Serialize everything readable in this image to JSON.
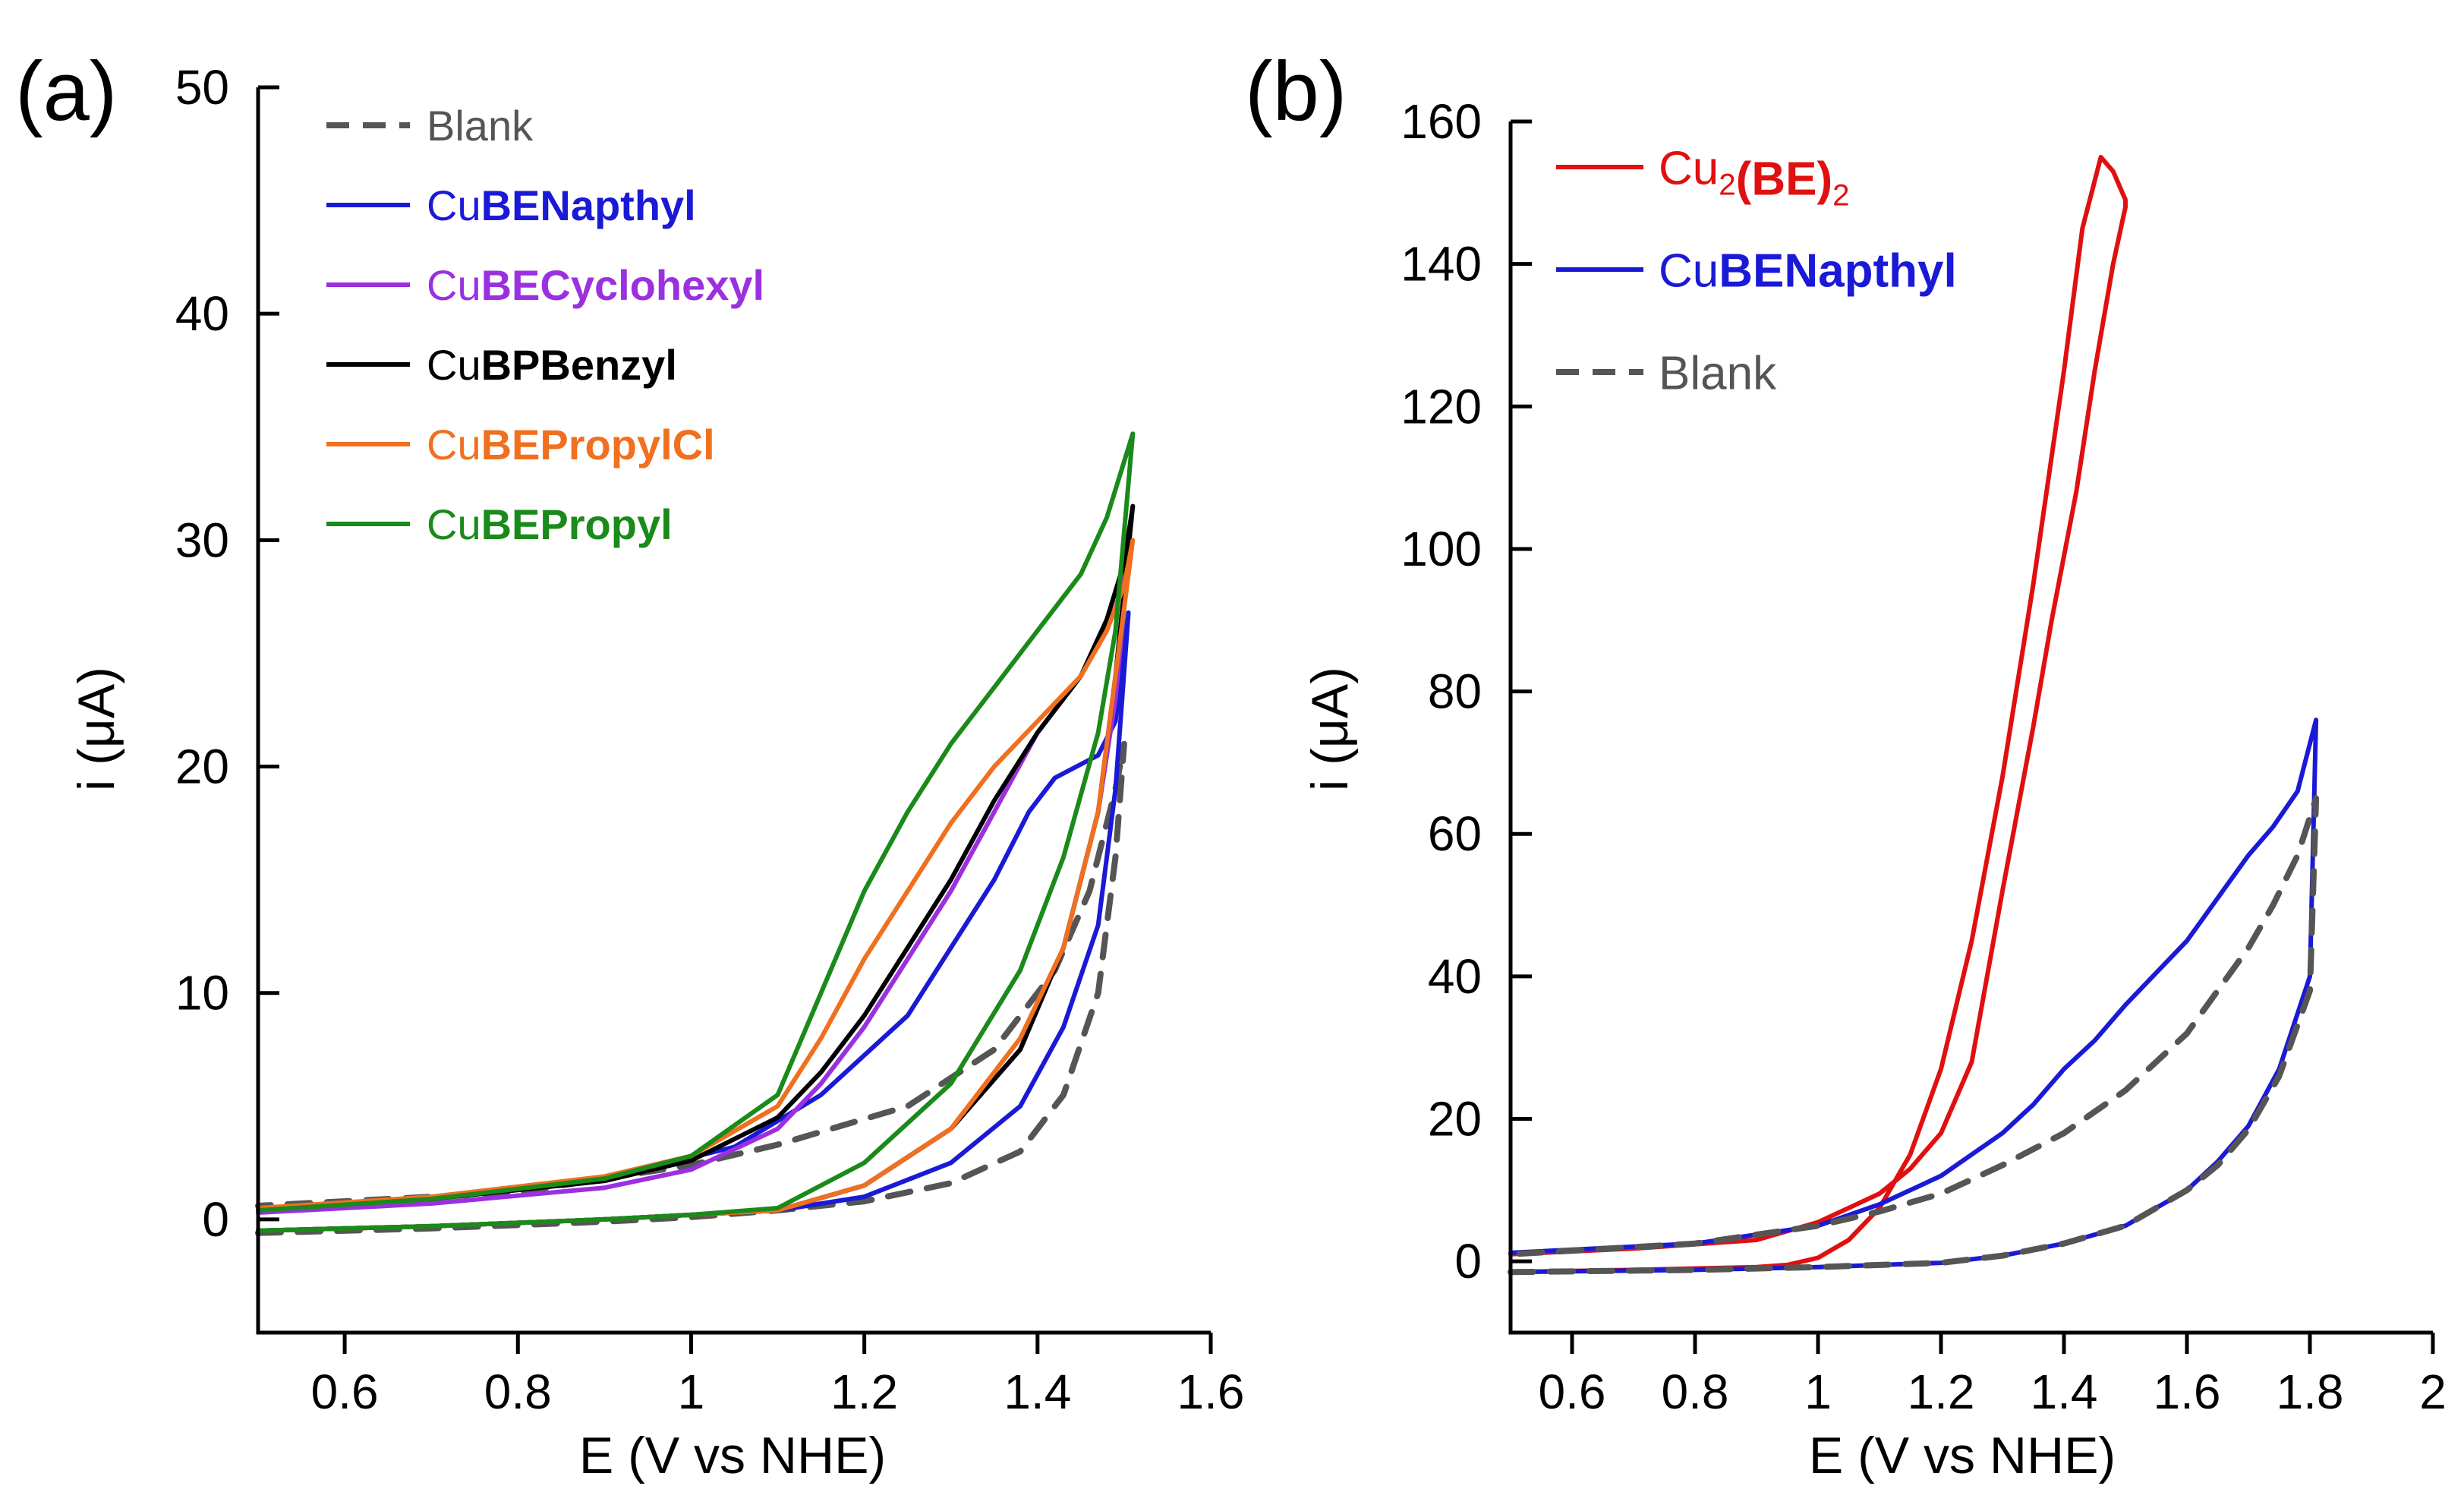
{
  "figure": {
    "panels": [
      {
        "label": "(a)",
        "xlabel": "E (V vs NHE)",
        "ylabel": "i (μA)",
        "xlim": [
          0.5,
          1.6
        ],
        "ylim": [
          -5,
          50
        ],
        "xticks": [
          0.6,
          0.8,
          1,
          1.2,
          1.4,
          1.6
        ],
        "xtick_labels": [
          "0.6",
          "0.8",
          "1",
          "1.2",
          "1.4",
          "1.6"
        ],
        "yticks": [
          0,
          10,
          20,
          30,
          40,
          50
        ],
        "ytick_labels": [
          "0",
          "10",
          "20",
          "30",
          "40",
          "50"
        ],
        "legend": [
          {
            "prefix": "",
            "bold": "",
            "plain": "Blank",
            "color": "#555555",
            "dashed": true
          },
          {
            "prefix": "Cu",
            "bold": "BENapthyl",
            "plain": "",
            "color": "#1a1ad6",
            "dashed": false
          },
          {
            "prefix": "Cu",
            "bold": "BECyclohexyl",
            "plain": "",
            "color": "#9b30e0",
            "dashed": false
          },
          {
            "prefix": "Cu",
            "bold": "BPBenzyl",
            "plain": "",
            "color": "#000000",
            "dashed": false
          },
          {
            "prefix": "Cu",
            "bold": "BEPropylCl",
            "plain": "",
            "color": "#f07020",
            "dashed": false
          },
          {
            "prefix": "Cu",
            "bold": "BEPropyl",
            "plain": "",
            "color": "#1a8a1a",
            "dashed": false
          }
        ]
      },
      {
        "label": "(b)",
        "xlabel": "E (V vs NHE)",
        "ylabel": "i (μA)",
        "xlim": [
          0.5,
          2.0
        ],
        "ylim": [
          -10,
          160
        ],
        "xticks": [
          0.6,
          0.8,
          1,
          1.2,
          1.4,
          1.6,
          1.8,
          2
        ],
        "xtick_labels": [
          "0.6",
          "0.8",
          "1",
          "1.2",
          "1.4",
          "1.6",
          "1.8",
          "2"
        ],
        "yticks": [
          0,
          20,
          40,
          60,
          80,
          100,
          120,
          140,
          160
        ],
        "ytick_labels": [
          "0",
          "20",
          "40",
          "60",
          "80",
          "100",
          "120",
          "140",
          "160"
        ],
        "legend": [
          {
            "prefix": "Cu",
            "sub1": "2",
            "bold": "(BE)",
            "sub2": "2",
            "color": "#e01010",
            "dashed": false
          },
          {
            "prefix": "Cu",
            "bold": "BENapthyl",
            "plain": "",
            "color": "#1a1ad6",
            "dashed": false
          },
          {
            "prefix": "",
            "bold": "",
            "plain": "Blank",
            "color": "#555555",
            "dashed": true
          }
        ]
      }
    ]
  },
  "chart_data": [
    {
      "type": "line",
      "title": "(a)",
      "xlabel": "E (V vs NHE)",
      "ylabel": "i (μA)",
      "xlim": [
        0.5,
        1.6
      ],
      "ylim": [
        -5,
        50
      ],
      "grid": false,
      "legend": "top-left",
      "series": [
        {
          "name": "Blank",
          "color": "#555555",
          "dashed": true,
          "x": [
            0.5,
            0.7,
            0.9,
            1.0,
            1.1,
            1.2,
            1.3,
            1.38,
            1.43,
            1.47,
            1.49,
            1.5,
            1.49,
            1.46,
            1.42,
            1.35,
            1.25,
            1.1,
            1.0,
            0.8,
            0.5
          ],
          "y": [
            -0.6,
            -0.4,
            -0.1,
            0.1,
            0.4,
            0.8,
            1.6,
            3.0,
            5.5,
            10.0,
            16.0,
            21.0,
            19.0,
            14.5,
            11.0,
            7.5,
            5.0,
            3.3,
            2.4,
            1.2,
            0.6
          ]
        },
        {
          "name": "CuBENapthyl",
          "color": "#1a1ad6",
          "dashed": false,
          "x": [
            0.5,
            0.7,
            0.9,
            1.0,
            1.1,
            1.2,
            1.3,
            1.38,
            1.43,
            1.47,
            1.49,
            1.505,
            1.49,
            1.47,
            1.42,
            1.39,
            1.35,
            1.25,
            1.15,
            1.05,
            0.9,
            0.7,
            0.5
          ],
          "y": [
            -0.5,
            -0.3,
            0.0,
            0.2,
            0.4,
            1.0,
            2.5,
            5.0,
            8.5,
            13.0,
            19.0,
            26.8,
            22.0,
            20.5,
            19.5,
            18.0,
            15.0,
            9.0,
            5.5,
            3.2,
            1.8,
            0.9,
            0.4
          ]
        },
        {
          "name": "CuBECyclohexyl",
          "color": "#9b30e0",
          "dashed": false,
          "x": [
            0.5,
            0.7,
            0.9,
            1.0,
            1.1,
            1.2,
            1.3,
            1.38,
            1.43,
            1.47,
            1.49,
            1.505,
            1.49,
            1.45,
            1.4,
            1.35,
            1.3,
            1.25,
            1.2,
            1.15,
            1.1,
            1.0,
            0.9,
            0.7,
            0.5
          ],
          "y": [
            -0.5,
            -0.3,
            0.0,
            0.2,
            0.4,
            1.5,
            4.0,
            7.5,
            12.0,
            18.0,
            23.0,
            29.0,
            27.0,
            24.0,
            21.5,
            18.0,
            14.5,
            11.5,
            8.5,
            6.0,
            4.0,
            2.2,
            1.4,
            0.7,
            0.3
          ]
        },
        {
          "name": "CuBPBenzyl",
          "color": "#000000",
          "dashed": false,
          "x": [
            0.5,
            0.7,
            0.9,
            1.0,
            1.1,
            1.2,
            1.3,
            1.38,
            1.43,
            1.47,
            1.49,
            1.51,
            1.5,
            1.48,
            1.45,
            1.4,
            1.35,
            1.3,
            1.25,
            1.2,
            1.15,
            1.1,
            1.0,
            0.9,
            0.7,
            0.5
          ],
          "y": [
            -0.5,
            -0.3,
            0.0,
            0.2,
            0.4,
            1.5,
            4.0,
            7.5,
            12.0,
            18.0,
            24.0,
            31.5,
            29.0,
            26.5,
            24.0,
            21.5,
            18.5,
            15.0,
            12.0,
            9.0,
            6.5,
            4.5,
            2.6,
            1.7,
            0.9,
            0.5
          ]
        },
        {
          "name": "CuBEPropylCl",
          "color": "#f07020",
          "dashed": false,
          "x": [
            0.5,
            0.7,
            0.9,
            1.0,
            1.1,
            1.2,
            1.3,
            1.38,
            1.43,
            1.47,
            1.49,
            1.51,
            1.5,
            1.48,
            1.45,
            1.4,
            1.35,
            1.3,
            1.25,
            1.2,
            1.15,
            1.1,
            1.0,
            0.9,
            0.7,
            0.5
          ],
          "y": [
            -0.5,
            -0.3,
            0.0,
            0.2,
            0.4,
            1.5,
            4.0,
            8.0,
            12.0,
            18.0,
            24.0,
            30.0,
            28.0,
            26.0,
            24.0,
            22.0,
            20.0,
            17.5,
            14.5,
            11.5,
            8.0,
            5.0,
            2.8,
            1.9,
            1.0,
            0.5
          ]
        },
        {
          "name": "CuBEPropyl",
          "color": "#1a8a1a",
          "dashed": false,
          "x": [
            0.5,
            0.7,
            0.9,
            1.0,
            1.1,
            1.2,
            1.3,
            1.38,
            1.43,
            1.47,
            1.49,
            1.51,
            1.48,
            1.45,
            1.4,
            1.35,
            1.3,
            1.25,
            1.2,
            1.15,
            1.1,
            1.0,
            0.9,
            0.7,
            0.5
          ],
          "y": [
            -0.5,
            -0.3,
            0.0,
            0.2,
            0.5,
            2.5,
            6.0,
            11.0,
            16.0,
            21.5,
            26.0,
            34.7,
            31.0,
            28.5,
            26.0,
            23.5,
            21.0,
            18.0,
            14.5,
            10.0,
            5.5,
            2.8,
            1.8,
            0.9,
            0.4
          ]
        }
      ]
    },
    {
      "type": "line",
      "title": "(b)",
      "xlabel": "E (V vs NHE)",
      "ylabel": "i (μA)",
      "xlim": [
        0.5,
        2.0
      ],
      "ylim": [
        -10,
        160
      ],
      "grid": false,
      "legend": "top-left",
      "series": [
        {
          "name": "Cu2(BE)2",
          "color": "#e01010",
          "dashed": false,
          "x": [
            0.5,
            0.7,
            0.9,
            0.95,
            1.0,
            1.05,
            1.1,
            1.15,
            1.2,
            1.25,
            1.3,
            1.35,
            1.4,
            1.43,
            1.46,
            1.48,
            1.5,
            1.5,
            1.48,
            1.45,
            1.42,
            1.38,
            1.35,
            1.3,
            1.25,
            1.2,
            1.15,
            1.1,
            1.05,
            1.0,
            0.9,
            0.7,
            0.5
          ],
          "y": [
            -1.5,
            -1.2,
            -0.8,
            -0.5,
            0.5,
            3.0,
            7.5,
            15.0,
            27.0,
            45.0,
            68.0,
            95.0,
            125.0,
            145.0,
            155.0,
            153.0,
            149.0,
            148.0,
            140.0,
            125.0,
            108.0,
            90.0,
            75.0,
            52.0,
            28.0,
            18.0,
            13.0,
            9.5,
            7.5,
            5.5,
            3.0,
            1.8,
            1.0
          ]
        },
        {
          "name": "CuBENapthyl",
          "color": "#1a1ad6",
          "dashed": false,
          "x": [
            0.5,
            0.8,
            1.0,
            1.2,
            1.3,
            1.4,
            1.5,
            1.6,
            1.65,
            1.7,
            1.75,
            1.8,
            1.81,
            1.78,
            1.74,
            1.7,
            1.65,
            1.6,
            1.5,
            1.45,
            1.4,
            1.35,
            1.3,
            1.2,
            1.1,
            1.0,
            0.8,
            0.5
          ],
          "y": [
            -1.5,
            -1.2,
            -0.8,
            -0.2,
            0.8,
            2.5,
            5.0,
            10.0,
            14.0,
            19.0,
            27.0,
            40.0,
            76.0,
            66.0,
            61.0,
            57.0,
            51.0,
            45.0,
            36.0,
            31.0,
            27.0,
            22.0,
            18.0,
            12.0,
            8.0,
            5.0,
            2.5,
            1.2
          ]
        },
        {
          "name": "Blank",
          "color": "#555555",
          "dashed": true,
          "x": [
            0.5,
            0.8,
            1.0,
            1.2,
            1.3,
            1.4,
            1.5,
            1.6,
            1.65,
            1.7,
            1.75,
            1.8,
            1.81,
            1.78,
            1.74,
            1.7,
            1.65,
            1.6,
            1.5,
            1.4,
            1.3,
            1.2,
            1.1,
            1.0,
            0.8,
            0.5
          ],
          "y": [
            -1.5,
            -1.2,
            -0.8,
            -0.2,
            0.8,
            2.5,
            5.0,
            10.0,
            13.5,
            18.5,
            26.0,
            38.0,
            65.0,
            57.0,
            50.0,
            44.0,
            38.0,
            32.0,
            24.0,
            18.0,
            13.5,
            9.5,
            7.0,
            5.0,
            2.5,
            1.0
          ]
        }
      ]
    }
  ]
}
